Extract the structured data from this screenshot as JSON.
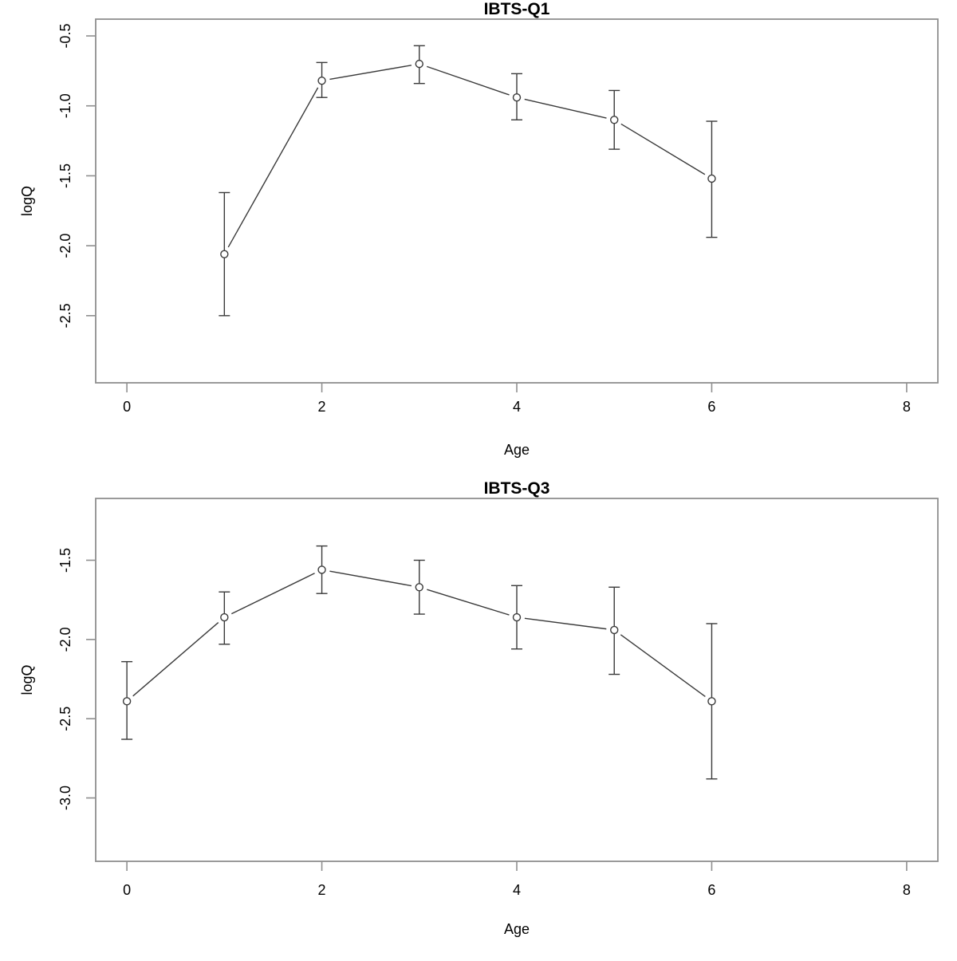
{
  "figure": {
    "background": "#ffffff",
    "frame_color": "#8f8f8f",
    "tick_color": "#8f8f8f",
    "series_color": "#3a3a3a",
    "text_color": "#000000"
  },
  "chart_data": [
    {
      "type": "line",
      "title": "IBTS-Q1",
      "xlabel": "Age",
      "ylabel": "logQ",
      "marker": "open-circle",
      "error_bars": true,
      "grid": false,
      "legend": null,
      "x": [
        1,
        2,
        3,
        4,
        5,
        6
      ],
      "y": [
        -2.06,
        -0.82,
        -0.7,
        -0.94,
        -1.1,
        -1.52
      ],
      "ci_upper": [
        -1.62,
        -0.69,
        -0.57,
        -0.77,
        -0.89,
        -1.11
      ],
      "ci_lower": [
        -2.5,
        -0.94,
        -0.84,
        -1.1,
        -1.31,
        -1.94
      ],
      "xlim": [
        -0.32,
        8.32
      ],
      "ylim": [
        -2.98,
        -0.38
      ],
      "xticks": [
        0,
        2,
        4,
        6,
        8
      ],
      "xtick_labels": [
        "0",
        "2",
        "4",
        "6",
        "8"
      ],
      "yticks": [
        -0.5,
        -1.0,
        -1.5,
        -2.0,
        -2.5
      ],
      "ytick_labels": [
        "-0.5",
        "-1.0",
        "-1.5",
        "-2.0",
        "-2.5"
      ]
    },
    {
      "type": "line",
      "title": "IBTS-Q3",
      "xlabel": "Age",
      "ylabel": "logQ",
      "marker": "open-circle",
      "error_bars": true,
      "grid": false,
      "legend": null,
      "x": [
        0,
        1,
        2,
        3,
        4,
        5,
        6
      ],
      "y": [
        -2.39,
        -1.86,
        -1.56,
        -1.67,
        -1.86,
        -1.94,
        -2.39
      ],
      "ci_upper": [
        -2.14,
        -1.7,
        -1.41,
        -1.5,
        -1.66,
        -1.67,
        -1.9
      ],
      "ci_lower": [
        -2.63,
        -2.03,
        -1.71,
        -1.84,
        -2.06,
        -2.22,
        -2.88
      ],
      "xlim": [
        -0.32,
        8.32
      ],
      "ylim": [
        -3.4,
        -1.11
      ],
      "xticks": [
        0,
        2,
        4,
        6,
        8
      ],
      "xtick_labels": [
        "0",
        "2",
        "4",
        "6",
        "8"
      ],
      "yticks": [
        -1.5,
        -2.0,
        -2.5,
        -3.0
      ],
      "ytick_labels": [
        "-1.5",
        "-2.0",
        "-2.5",
        "-3.0"
      ]
    }
  ]
}
